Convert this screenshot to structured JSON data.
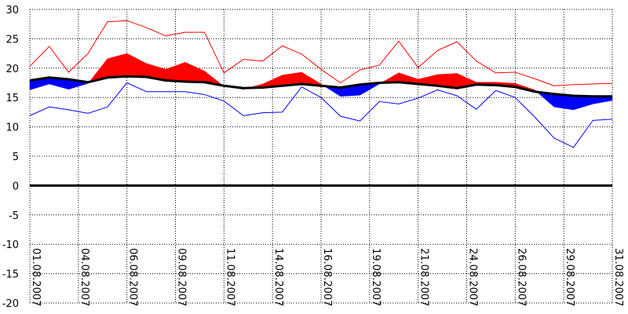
{
  "chart_data": {
    "type": "area",
    "title": "",
    "xlabel": "",
    "ylabel": "",
    "x_start": "01.08.2007",
    "x_end": "31.08.2007",
    "x_tick_labels": [
      "01.08.2007",
      "04.08.2007",
      "06.08.2007",
      "09.08.2007",
      "11.08.2007",
      "14.08.2007",
      "16.08.2007",
      "19.08.2007",
      "21.08.2007",
      "24.08.2007",
      "26.08.2007",
      "29.08.2007",
      "31.08.2007"
    ],
    "ylim": [
      -20,
      30
    ],
    "y_ticks": [
      30,
      25,
      20,
      15,
      10,
      5,
      0,
      -5,
      -10,
      -15,
      -20
    ],
    "grid": true,
    "zero_line": 0,
    "series": [
      {
        "role": "max",
        "color": "#ff0000",
        "values": [
          20.3,
          23.7,
          19.3,
          22.5,
          27.9,
          28.1,
          26.9,
          25.5,
          26.1,
          26.1,
          19.2,
          21.5,
          21.2,
          23.8,
          22.4,
          19.8,
          17.5,
          19.7,
          20.5,
          24.6,
          20.1,
          23.0,
          24.5,
          21.2,
          19.2,
          19.3,
          18.2,
          17.0,
          17.2,
          17.3,
          17.4
        ]
      },
      {
        "role": "mean",
        "color": "#ff0000",
        "values": [
          16.3,
          17.3,
          16.4,
          17.4,
          21.6,
          22.5,
          20.8,
          19.8,
          21.0,
          19.5,
          16.9,
          16.4,
          17.3,
          18.8,
          19.3,
          17.3,
          15.2,
          15.4,
          17.3,
          19.2,
          18.1,
          18.9,
          19.1,
          17.6,
          17.6,
          17.4,
          16.3,
          13.4,
          12.9,
          13.9,
          14.5
        ]
      },
      {
        "role": "normal",
        "color": "#000000",
        "values": [
          17.9,
          18.4,
          18.1,
          17.6,
          18.4,
          18.6,
          18.5,
          17.9,
          17.7,
          17.6,
          17.0,
          16.6,
          16.7,
          17.0,
          17.3,
          17.0,
          16.7,
          17.2,
          17.5,
          17.6,
          17.3,
          17.0,
          16.6,
          17.2,
          17.1,
          16.8,
          16.0,
          15.6,
          15.3,
          15.2,
          15.2
        ]
      },
      {
        "role": "min",
        "color": "#0000ff",
        "values": [
          11.9,
          13.4,
          12.9,
          12.3,
          13.4,
          17.5,
          16.0,
          16.0,
          16.0,
          15.5,
          14.4,
          11.9,
          12.4,
          12.5,
          16.8,
          15.0,
          11.8,
          11.0,
          14.3,
          13.9,
          14.9,
          16.3,
          15.3,
          13.0,
          16.2,
          15.0,
          11.7,
          8.1,
          6.5,
          11.1,
          11.3
        ]
      }
    ]
  }
}
